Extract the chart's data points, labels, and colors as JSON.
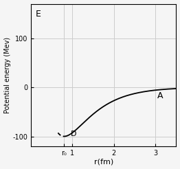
{
  "title": "",
  "xlabel": "r(fm)",
  "ylabel": "Potential energy (Mev)",
  "xlim": [
    0.0,
    3.5
  ],
  "ylim": [
    -120,
    170
  ],
  "yticks": [
    100,
    0,
    -100
  ],
  "ytick_extra_label_E_y": 150,
  "xticks_positions": [
    0.8,
    1.0,
    2.0,
    3.0
  ],
  "xtick_labels": [
    "r₀",
    "1",
    "2",
    "3"
  ],
  "label_E": "E",
  "label_D": "D",
  "label_A": "A",
  "r0": 0.8,
  "background_color": "#f5f5f5",
  "curve_color": "#000000",
  "grid_color": "#cccccc",
  "spine_color": "#000000"
}
